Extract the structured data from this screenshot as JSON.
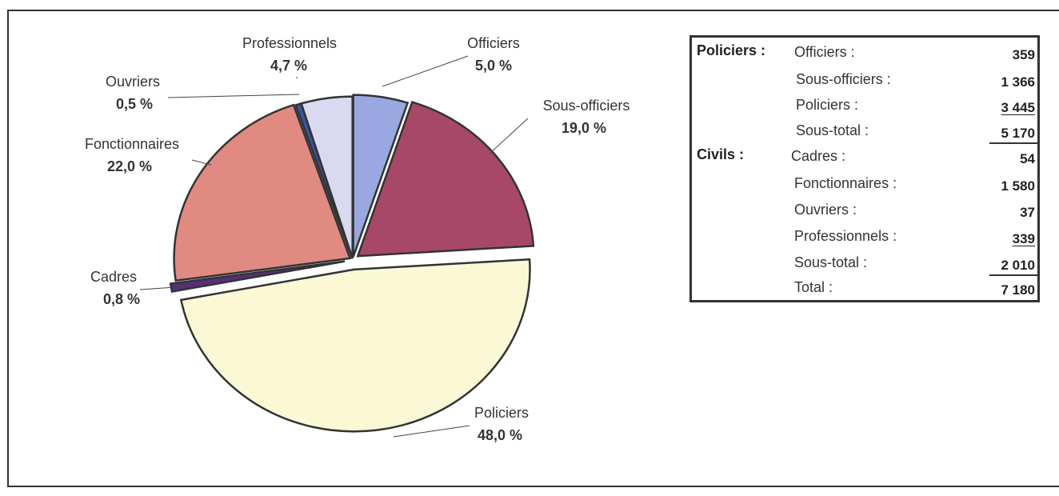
{
  "chart_data": {
    "type": "pie",
    "slices": [
      {
        "label": "Officiers",
        "pct": "5,0 %",
        "value": 5.0,
        "color": "#99A8E0"
      },
      {
        "label": "Sous-officiers",
        "pct": "19,0 %",
        "value": 19.0,
        "color": "#A84868"
      },
      {
        "label": "Policiers",
        "pct": "48,0 %",
        "value": 48.0,
        "color": "#FBF8D6"
      },
      {
        "label": "Cadres",
        "pct": "0,8 %",
        "value": 0.8,
        "color": "#5A2D7A"
      },
      {
        "label": "Fonctionnaires",
        "pct": "22,0 %",
        "value": 22.0,
        "color": "#E08A82"
      },
      {
        "label": "Ouvriers",
        "pct": "0,5 %",
        "value": 0.5,
        "color": "#3A55A8"
      },
      {
        "label": "Professionnels",
        "pct": "4,7 %",
        "value": 4.7,
        "color": "#D9DAF0"
      }
    ]
  },
  "table": {
    "groups": [
      {
        "label": "Policiers :",
        "rows": [
          {
            "label": "Officiers :",
            "value": "359",
            "underline": false
          },
          {
            "label": "Sous-officiers :",
            "value": "1 366",
            "underline": false
          },
          {
            "label": "Policiers :",
            "value": "3 445",
            "underline": true
          },
          {
            "label": "Sous-total :",
            "value": "5 170",
            "underline": false
          }
        ]
      },
      {
        "label": "Civils :",
        "rows": [
          {
            "label": "Cadres :",
            "value": "54",
            "underline": false
          },
          {
            "label": "Fonctionnaires :",
            "value": "1 580",
            "underline": false
          },
          {
            "label": "Ouvriers :",
            "value": "37",
            "underline": false
          },
          {
            "label": "Professionnels :",
            "value": "339",
            "underline": true
          },
          {
            "label": "Sous-total :",
            "value": "2 010",
            "underline": false
          },
          {
            "label": "Total :",
            "value": "7 180",
            "underline": false
          }
        ]
      }
    ]
  }
}
